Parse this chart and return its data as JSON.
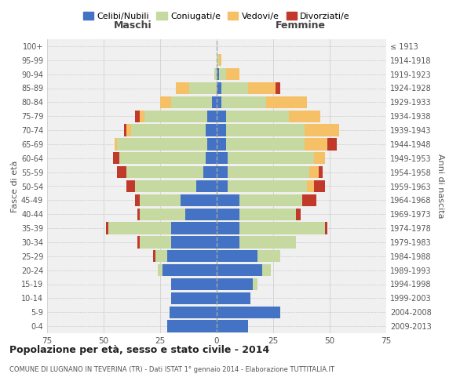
{
  "age_groups": [
    "0-4",
    "5-9",
    "10-14",
    "15-19",
    "20-24",
    "25-29",
    "30-34",
    "35-39",
    "40-44",
    "45-49",
    "50-54",
    "55-59",
    "60-64",
    "65-69",
    "70-74",
    "75-79",
    "80-84",
    "85-89",
    "90-94",
    "95-99",
    "100+"
  ],
  "birth_years": [
    "2009-2013",
    "2004-2008",
    "1999-2003",
    "1994-1998",
    "1989-1993",
    "1984-1988",
    "1979-1983",
    "1974-1978",
    "1969-1973",
    "1964-1968",
    "1959-1963",
    "1954-1958",
    "1949-1953",
    "1944-1948",
    "1939-1943",
    "1934-1938",
    "1929-1933",
    "1924-1928",
    "1919-1923",
    "1914-1918",
    "≤ 1913"
  ],
  "male": {
    "celibi": [
      22,
      21,
      20,
      20,
      24,
      22,
      20,
      20,
      14,
      16,
      9,
      6,
      5,
      4,
      5,
      4,
      2,
      0,
      0,
      0,
      0
    ],
    "coniugati": [
      0,
      0,
      0,
      0,
      2,
      5,
      14,
      28,
      20,
      18,
      27,
      34,
      38,
      40,
      33,
      28,
      18,
      12,
      1,
      0,
      0
    ],
    "vedovi": [
      0,
      0,
      0,
      0,
      0,
      0,
      0,
      0,
      0,
      0,
      0,
      0,
      0,
      1,
      2,
      2,
      5,
      6,
      0,
      0,
      0
    ],
    "divorziati": [
      0,
      0,
      0,
      0,
      0,
      1,
      1,
      1,
      1,
      2,
      4,
      4,
      3,
      0,
      1,
      2,
      0,
      0,
      0,
      0,
      0
    ]
  },
  "female": {
    "nubili": [
      14,
      28,
      15,
      16,
      20,
      18,
      10,
      10,
      10,
      10,
      5,
      5,
      5,
      4,
      4,
      4,
      2,
      2,
      1,
      0,
      0
    ],
    "coniugate": [
      0,
      0,
      0,
      2,
      4,
      10,
      25,
      38,
      25,
      28,
      35,
      36,
      38,
      35,
      35,
      28,
      20,
      12,
      3,
      1,
      0
    ],
    "vedove": [
      0,
      0,
      0,
      0,
      0,
      0,
      0,
      0,
      0,
      0,
      3,
      4,
      5,
      10,
      15,
      14,
      18,
      12,
      6,
      1,
      0
    ],
    "divorziate": [
      0,
      0,
      0,
      0,
      0,
      0,
      0,
      1,
      2,
      6,
      5,
      2,
      0,
      4,
      0,
      0,
      0,
      2,
      0,
      0,
      0
    ]
  },
  "colors": {
    "celibi": "#4472c4",
    "coniugati": "#c5d9a0",
    "vedovi": "#f5c066",
    "divorziati": "#c0392b"
  },
  "title": "Popolazione per età, sesso e stato civile - 2014",
  "subtitle": "COMUNE DI LUGNANO IN TEVERINA (TR) - Dati ISTAT 1° gennaio 2014 - Elaborazione TUTTITALIA.IT",
  "xlabel_left": "Maschi",
  "xlabel_right": "Femmine",
  "ylabel_left": "Fasce di età",
  "ylabel_right": "Anni di nascita",
  "xlim": 75,
  "legend_labels": [
    "Celibi/Nubili",
    "Coniugati/e",
    "Vedovi/e",
    "Divorziati/e"
  ],
  "bg_color": "#f0f0f0",
  "bar_height": 0.85,
  "grid_color": "#cccccc"
}
